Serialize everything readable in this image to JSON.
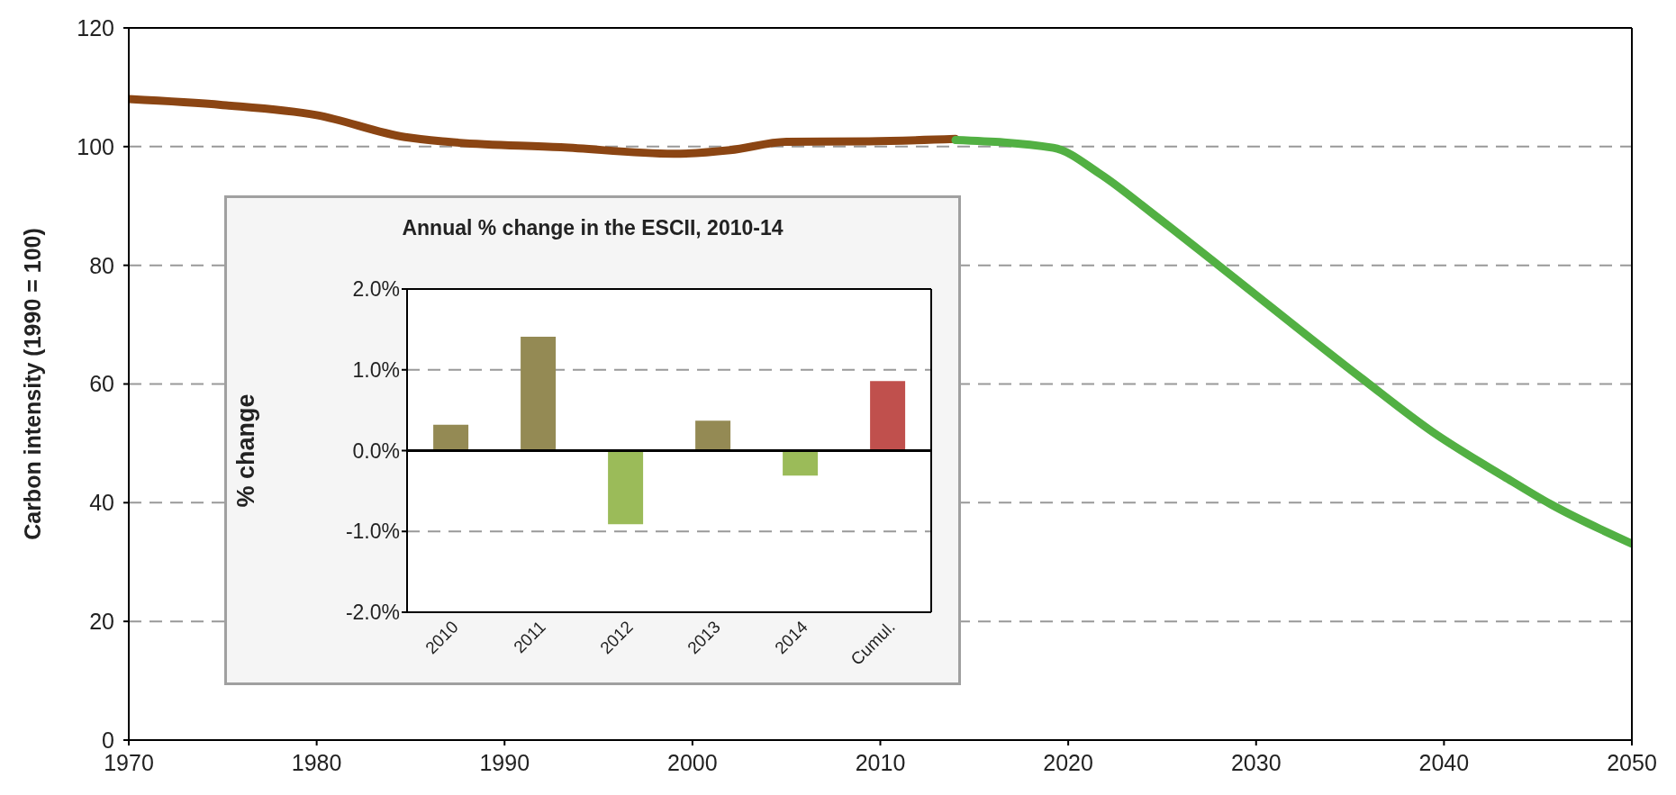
{
  "chart_data": [
    {
      "type": "line",
      "ylabel": "Carbon intensity (1990 = 100)",
      "xlim": [
        1970,
        2050
      ],
      "xticks": [
        1970,
        1980,
        1990,
        2000,
        2010,
        2020,
        2030,
        2040,
        2050
      ],
      "ylim": [
        0,
        120
      ],
      "yticks": [
        0,
        20,
        40,
        60,
        80,
        100,
        120
      ],
      "grid": "y",
      "series": [
        {
          "color": "#8b4513",
          "x": [
            1970,
            1975,
            1980,
            1984.7,
            1987,
            1993,
            1999,
            2002,
            2005,
            2009.4,
            2014
          ],
          "values": [
            108,
            107,
            105.3,
            101.6,
            100.8,
            99.9,
            98.8,
            99.4,
            100.8,
            100.9,
            101.3
          ]
        },
        {
          "color": "#52b043",
          "x": [
            2014,
            2019.2,
            2021.7,
            2024.5,
            2028,
            2035.6,
            2039.4,
            2043.2,
            2045.7,
            2050
          ],
          "values": [
            101.1,
            99.8,
            95.4,
            88.7,
            80,
            61,
            51.9,
            44.4,
            39.7,
            33.1
          ]
        }
      ]
    },
    {
      "type": "bar",
      "title": "Annual % change in the ESCII, 2010-14",
      "ylabel": "% change",
      "categories": [
        "2010",
        "2011",
        "2012",
        "2013",
        "2014",
        "Cumul."
      ],
      "values": [
        0.32,
        1.41,
        -0.91,
        0.37,
        -0.31,
        0.86
      ],
      "colors": [
        "#948a54",
        "#948a54",
        "#9bbb59",
        "#948a54",
        "#9bbb59",
        "#c0504d"
      ],
      "ylim": [
        -2,
        2
      ],
      "yticks": [
        {
          "value": -2,
          "label": "-2.0%"
        },
        {
          "value": -1,
          "label": "-1.0%"
        },
        {
          "value": 0,
          "label": "0.0%"
        },
        {
          "value": 1,
          "label": "1.0%"
        },
        {
          "value": 2,
          "label": "2.0%"
        }
      ],
      "grid": "y",
      "ref_lines": [
        {
          "axis": "y",
          "value": 0,
          "color": "#000000"
        }
      ]
    }
  ]
}
